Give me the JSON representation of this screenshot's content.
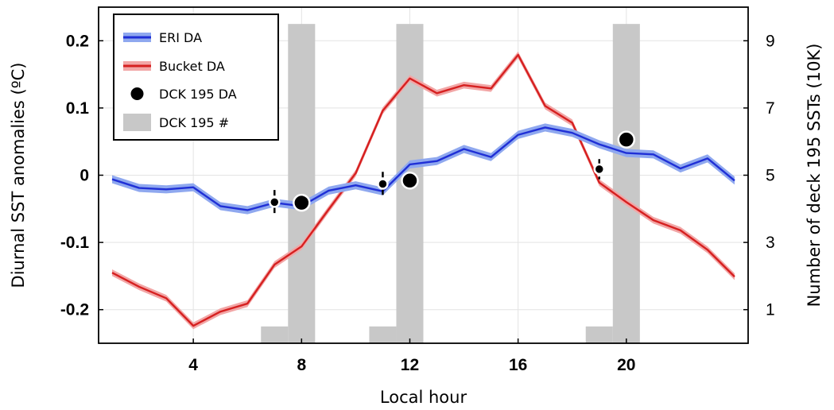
{
  "chart_data": {
    "type": "line",
    "xlabel": "Local hour",
    "ylabel": "Diurnal SST anomalies (ºC)",
    "ylabel_right": "Number of deck 195 SSTs (10K)",
    "xlim": [
      0.5,
      24.5
    ],
    "ylim": [
      -0.25,
      0.25
    ],
    "ylim_right": [
      0,
      10
    ],
    "x_ticks": [
      4,
      8,
      12,
      16,
      20
    ],
    "x_tick_labels": [
      "4",
      "8",
      "12",
      "16",
      "20"
    ],
    "y_ticks": [
      -0.2,
      -0.1,
      0,
      0.1,
      0.2
    ],
    "y_tick_labels": [
      "-0.2",
      "-0.1",
      "0",
      "0.1",
      "0.2"
    ],
    "y_right_ticks": [
      1,
      3,
      5,
      7,
      9
    ],
    "y_right_tick_labels": [
      "1",
      "3",
      "5",
      "7",
      "9"
    ],
    "grid": true,
    "legend_position": "top-left",
    "colors": {
      "eri": "#1f2fd6",
      "eri_band": "#8fa8ef",
      "bucket": "#d62020",
      "bucket_band": "#f2a6a6",
      "dck_points": "#000000",
      "dck_bars": "#c8c8c8",
      "grid": "#e3e3e3"
    },
    "series": [
      {
        "name": "ERI DA",
        "x": [
          1,
          2,
          3,
          4,
          5,
          6,
          7,
          8,
          9,
          10,
          11,
          12,
          13,
          14,
          15,
          16,
          17,
          18,
          19,
          20,
          21,
          22,
          23,
          24
        ],
        "y": [
          -0.006,
          -0.019,
          -0.021,
          -0.018,
          -0.046,
          -0.052,
          -0.041,
          -0.046,
          -0.023,
          -0.015,
          -0.024,
          0.016,
          0.021,
          0.039,
          0.027,
          0.06,
          0.071,
          0.063,
          0.046,
          0.033,
          0.031,
          0.01,
          0.025,
          -0.008
        ],
        "band": 0.006
      },
      {
        "name": "Bucket DA",
        "x": [
          1,
          2,
          3,
          4,
          5,
          6,
          7,
          8,
          9,
          10,
          11,
          12,
          13,
          14,
          15,
          16,
          17,
          18,
          19,
          20,
          21,
          22,
          23,
          24
        ],
        "y": [
          -0.145,
          -0.166,
          -0.183,
          -0.224,
          -0.203,
          -0.191,
          -0.133,
          -0.106,
          -0.051,
          0.003,
          0.096,
          0.144,
          0.122,
          0.134,
          0.129,
          0.179,
          0.103,
          0.078,
          -0.011,
          -0.04,
          -0.067,
          -0.082,
          -0.111,
          -0.151
        ],
        "band": 0.005
      },
      {
        "name": "DCK 195 DA",
        "x": [
          7,
          8,
          11,
          12,
          19,
          20
        ],
        "y": [
          -0.04,
          -0.041,
          -0.013,
          -0.008,
          0.009,
          0.053
        ],
        "marker_size": [
          "small",
          "large",
          "small",
          "large",
          "small",
          "large"
        ],
        "error": [
          0.018,
          0,
          0.018,
          0,
          0.015,
          0
        ]
      },
      {
        "name": "DCK 195 #",
        "bars": [
          {
            "x0": 6.5,
            "x1": 7.5,
            "value": 0.5
          },
          {
            "x0": 7.5,
            "x1": 8.5,
            "value": 9.5
          },
          {
            "x0": 10.5,
            "x1": 11.5,
            "value": 0.5
          },
          {
            "x0": 11.5,
            "x1": 12.5,
            "value": 9.5
          },
          {
            "x0": 18.5,
            "x1": 19.5,
            "value": 0.5
          },
          {
            "x0": 19.5,
            "x1": 20.5,
            "value": 9.5
          }
        ]
      }
    ],
    "legend": [
      "ERI DA",
      "Bucket DA",
      "DCK 195 DA",
      "DCK 195 #"
    ]
  }
}
